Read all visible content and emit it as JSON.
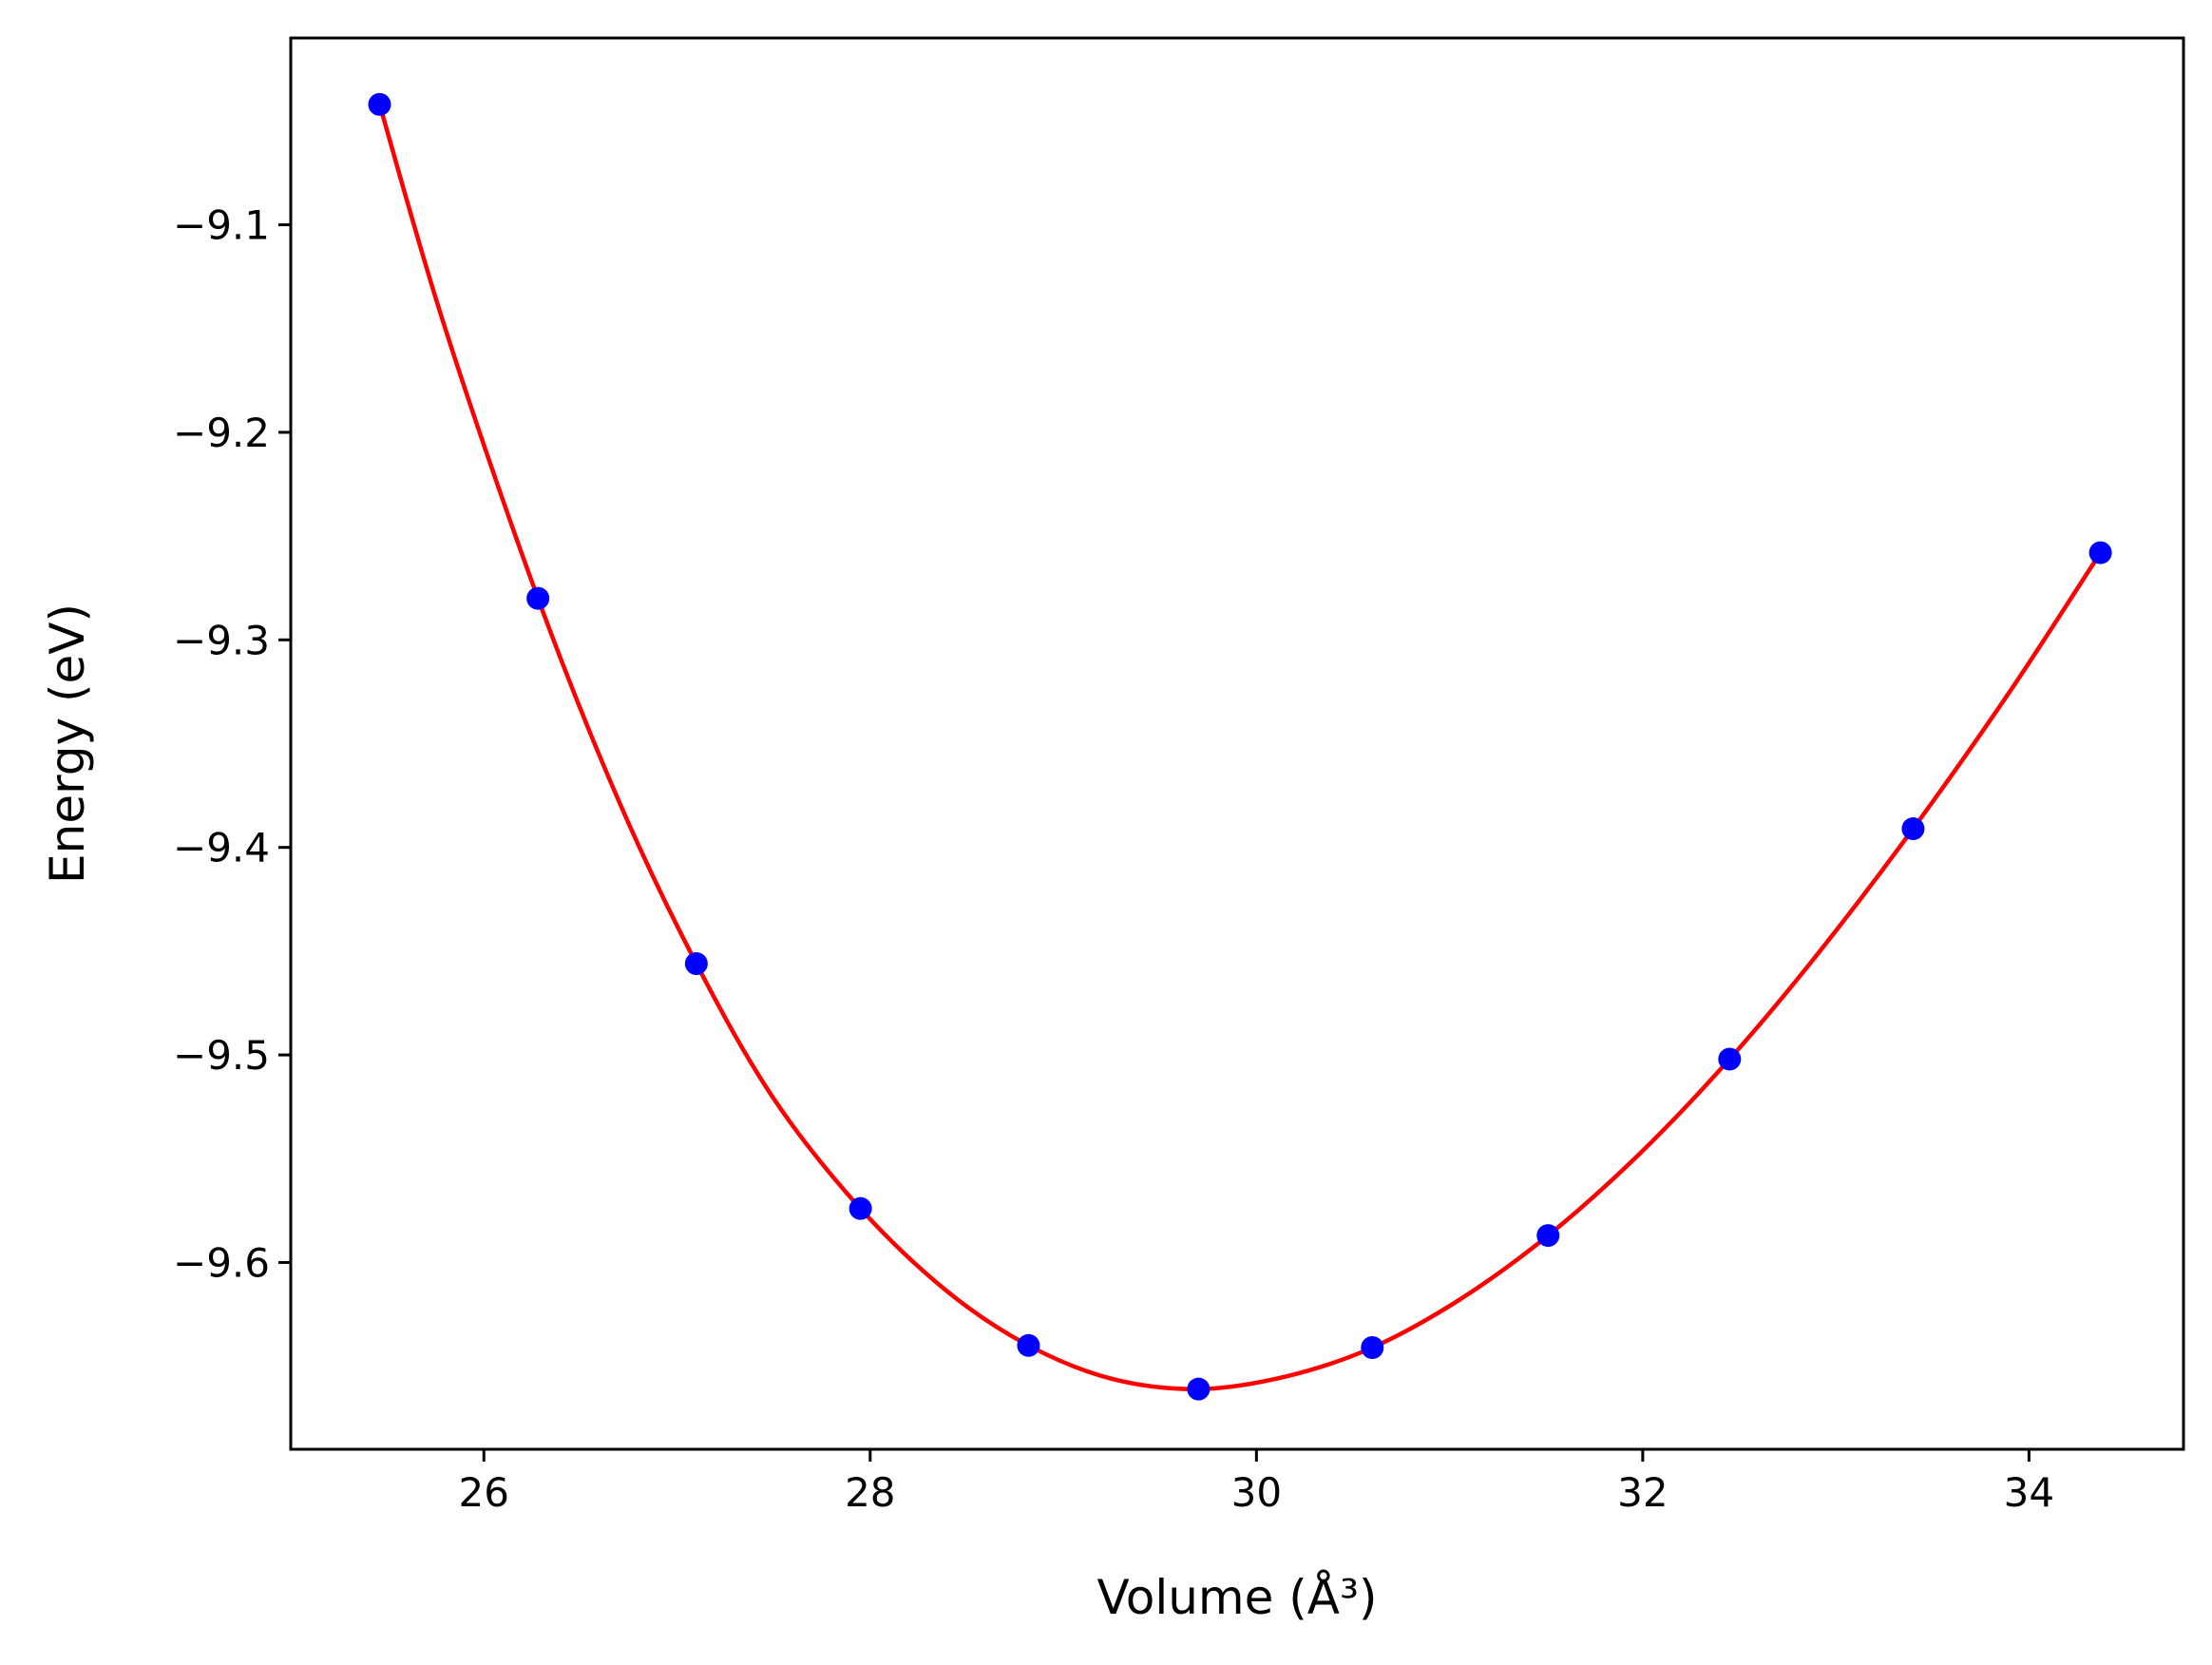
{
  "chart_data": {
    "type": "scatter",
    "title": "",
    "xlabel": "Volume (Å³)",
    "ylabel": "Energy (eV)",
    "xlim": [
      25.0,
      34.8
    ],
    "ylim": [
      -9.69,
      -9.01
    ],
    "x_ticks": [
      26,
      28,
      30,
      32,
      34
    ],
    "y_ticks": [
      -9.1,
      -9.2,
      -9.3,
      -9.4,
      -9.5,
      -9.6
    ],
    "x_tick_labels": [
      "26",
      "28",
      "30",
      "32",
      "34"
    ],
    "y_tick_labels": [
      "−9.1",
      "−9.2",
      "−9.3",
      "−9.4",
      "−9.5",
      "−9.6"
    ],
    "grid": false,
    "series": [
      {
        "kind": "points",
        "color": "#0000ff",
        "x": [
          25.46,
          26.28,
          27.1,
          27.95,
          28.82,
          29.7,
          30.6,
          31.51,
          32.45,
          33.4,
          34.37
        ],
        "y": [
          -9.042,
          -9.28,
          -9.456,
          -9.574,
          -9.64,
          -9.661,
          -9.641,
          -9.587,
          -9.502,
          -9.391,
          -9.258
        ]
      },
      {
        "kind": "fit-curve",
        "color": "#ff0000",
        "x": [
          25.46,
          25.8,
          26.28,
          26.7,
          27.1,
          27.5,
          27.95,
          28.4,
          28.82,
          29.25,
          29.7,
          30.15,
          30.6,
          31.05,
          31.51,
          31.98,
          32.45,
          32.9,
          33.4,
          33.9,
          34.37
        ],
        "y": [
          -9.042,
          -9.15,
          -9.28,
          -9.378,
          -9.456,
          -9.521,
          -9.574,
          -9.614,
          -9.64,
          -9.656,
          -9.661,
          -9.655,
          -9.641,
          -9.618,
          -9.587,
          -9.548,
          -9.502,
          -9.452,
          -9.391,
          -9.325,
          -9.258
        ]
      }
    ]
  }
}
